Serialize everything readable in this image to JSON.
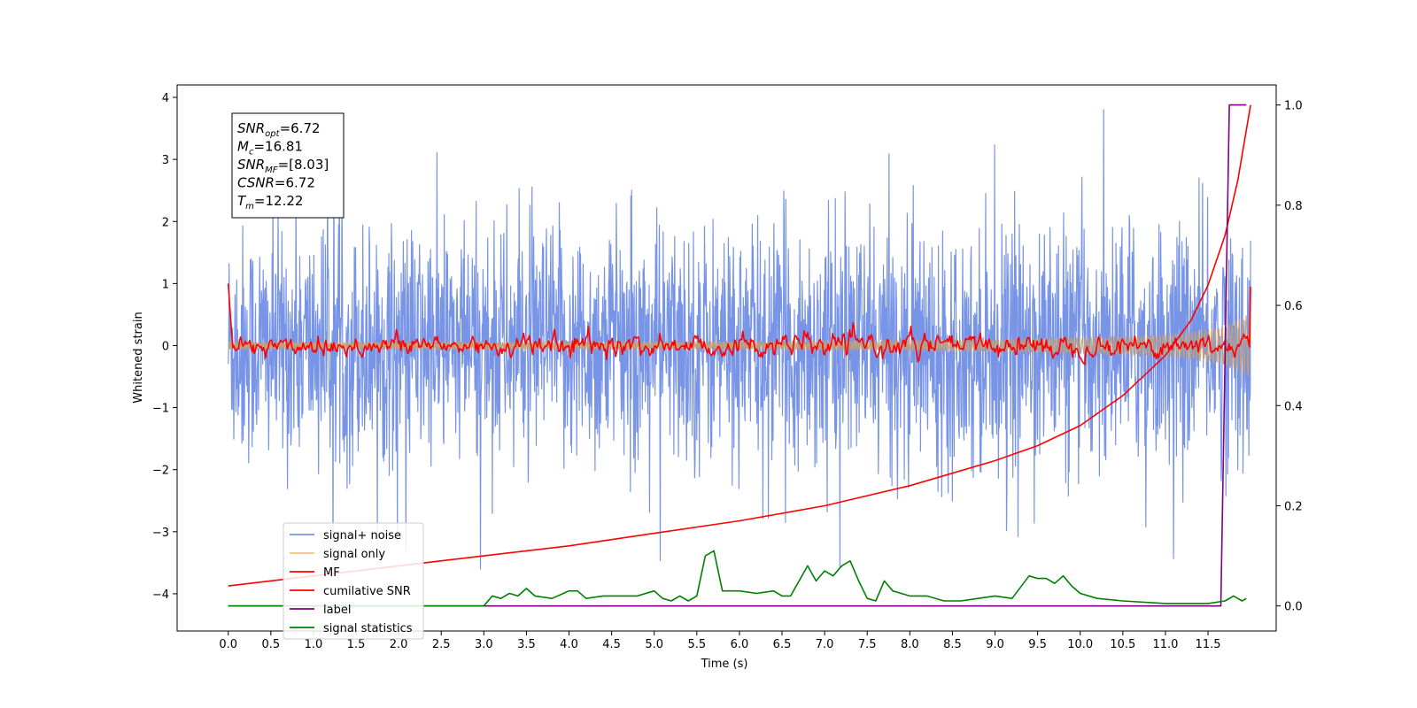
{
  "chart_data": {
    "type": "line",
    "xlabel": "Time (s)",
    "ylabel": "Whitened strain",
    "xlim": [
      -0.6,
      12.3
    ],
    "ylim": [
      -4.6,
      4.2
    ],
    "y2lim": [
      -0.05,
      1.04
    ],
    "xticks": [
      0.0,
      0.5,
      1.0,
      1.5,
      2.0,
      2.5,
      3.0,
      3.5,
      4.0,
      4.5,
      5.0,
      5.5,
      6.0,
      6.5,
      7.0,
      7.5,
      8.0,
      8.5,
      9.0,
      9.5,
      10.0,
      10.5,
      11.0,
      11.5
    ],
    "xtick_labels": [
      "0.0",
      "0.5",
      "1.0",
      "1.5",
      "2.0",
      "2.5",
      "3.0",
      "3.5",
      "4.0",
      "4.5",
      "5.0",
      "5.5",
      "6.0",
      "6.5",
      "7.0",
      "7.5",
      "8.0",
      "8.5",
      "9.0",
      "9.5",
      "10.0",
      "10.5",
      "11.0",
      "11.5"
    ],
    "yticks": [
      -4,
      -3,
      -2,
      -1,
      0,
      1,
      2,
      3,
      4
    ],
    "ytick_labels": [
      "−4",
      "−3",
      "−2",
      "−1",
      "0",
      "1",
      "2",
      "3",
      "4"
    ],
    "y2ticks": [
      0.0,
      0.2,
      0.4,
      0.6,
      0.8,
      1.0
    ],
    "y2tick_labels": [
      "0.0",
      "0.2",
      "0.4",
      "0.6",
      "0.8",
      "1.0"
    ],
    "annotation": {
      "lines": [
        {
          "name": "SNR",
          "sub": "opt",
          "value": "=6.72"
        },
        {
          "name": "M",
          "sub": "c",
          "value": "=16.81"
        },
        {
          "name": "SNR",
          "sub": "MF",
          "value": "=[8.03]"
        },
        {
          "name": "CSNR",
          "sub": "",
          "value": "=6.72"
        },
        {
          "name": "T",
          "sub": "m",
          "value": "=12.22"
        }
      ]
    },
    "legend": {
      "position": "lower-left",
      "entries": [
        {
          "label": "signal+ noise",
          "color": "#7894e6"
        },
        {
          "label": "signal only",
          "color": "#f5c57a"
        },
        {
          "label": "MF",
          "color": "#ff0000"
        },
        {
          "label": "cumilative SNR",
          "color": "#ff0000"
        },
        {
          "label": "label",
          "color": "#800080"
        },
        {
          "label": "signal statistics",
          "color": "#008000"
        }
      ]
    },
    "series": [
      {
        "name": "signal+ noise",
        "axis": "left",
        "color": "#7894e6",
        "kind": "gaussian-noise",
        "x_range": [
          0,
          12.0
        ],
        "sigma": 1.0,
        "observed_range": [
          -3.6,
          3.8
        ]
      },
      {
        "name": "signal only",
        "axis": "left",
        "color": "#c8a070",
        "kind": "chirp-envelope",
        "x_range": [
          0,
          12.0
        ],
        "envelope_x": [
          0,
          6,
          9,
          10.5,
          11.2,
          11.6,
          11.9,
          12.0
        ],
        "envelope_y": [
          0.06,
          0.07,
          0.1,
          0.15,
          0.2,
          0.3,
          0.45,
          0.55
        ]
      },
      {
        "name": "MF",
        "axis": "left",
        "color": "#ff0000",
        "kind": "noisy-trace",
        "x_range": [
          0,
          12.0
        ],
        "start_value": 1.0,
        "end_value": 0.95,
        "baseline": 0.0,
        "spread": 0.12
      },
      {
        "name": "cumilative SNR",
        "axis": "right",
        "color": "#ff0000",
        "x": [
          0.0,
          1.0,
          2.0,
          3.0,
          4.0,
          5.0,
          6.0,
          7.0,
          8.0,
          8.5,
          9.0,
          9.5,
          10.0,
          10.5,
          11.0,
          11.3,
          11.5,
          11.7,
          11.85,
          12.0
        ],
        "y": [
          0.04,
          0.06,
          0.08,
          0.1,
          0.12,
          0.145,
          0.17,
          0.2,
          0.24,
          0.265,
          0.29,
          0.32,
          0.36,
          0.42,
          0.5,
          0.57,
          0.64,
          0.74,
          0.85,
          1.0
        ]
      },
      {
        "name": "label",
        "axis": "right",
        "color": "#800080",
        "x": [
          0.0,
          11.65,
          11.75,
          11.95
        ],
        "y": [
          0.0,
          0.0,
          1.0,
          1.0
        ]
      },
      {
        "name": "signal statistics",
        "axis": "right",
        "color": "#008000",
        "x": [
          0.0,
          0.5,
          1.0,
          1.5,
          2.0,
          2.5,
          3.0,
          3.1,
          3.2,
          3.3,
          3.4,
          3.5,
          3.6,
          3.8,
          4.0,
          4.1,
          4.2,
          4.4,
          4.6,
          4.8,
          5.0,
          5.1,
          5.2,
          5.3,
          5.4,
          5.5,
          5.6,
          5.7,
          5.8,
          5.9,
          6.0,
          6.2,
          6.4,
          6.5,
          6.6,
          6.8,
          6.9,
          7.0,
          7.1,
          7.2,
          7.3,
          7.4,
          7.5,
          7.6,
          7.7,
          7.8,
          8.0,
          8.2,
          8.4,
          8.6,
          8.8,
          9.0,
          9.2,
          9.4,
          9.5,
          9.6,
          9.7,
          9.8,
          9.9,
          10.0,
          10.2,
          10.5,
          11.0,
          11.5,
          11.7,
          11.8,
          11.9,
          11.95
        ],
        "y": [
          0.0,
          0.0,
          0.0,
          0.0,
          0.0,
          0.0,
          0.0,
          0.02,
          0.015,
          0.025,
          0.02,
          0.035,
          0.02,
          0.015,
          0.03,
          0.03,
          0.015,
          0.02,
          0.02,
          0.02,
          0.03,
          0.015,
          0.01,
          0.02,
          0.01,
          0.02,
          0.1,
          0.11,
          0.03,
          0.03,
          0.03,
          0.025,
          0.03,
          0.02,
          0.02,
          0.08,
          0.05,
          0.07,
          0.06,
          0.08,
          0.09,
          0.05,
          0.015,
          0.01,
          0.05,
          0.03,
          0.02,
          0.02,
          0.01,
          0.01,
          0.015,
          0.02,
          0.015,
          0.06,
          0.055,
          0.055,
          0.045,
          0.06,
          0.04,
          0.025,
          0.015,
          0.01,
          0.005,
          0.005,
          0.01,
          0.02,
          0.01,
          0.015
        ]
      }
    ]
  }
}
